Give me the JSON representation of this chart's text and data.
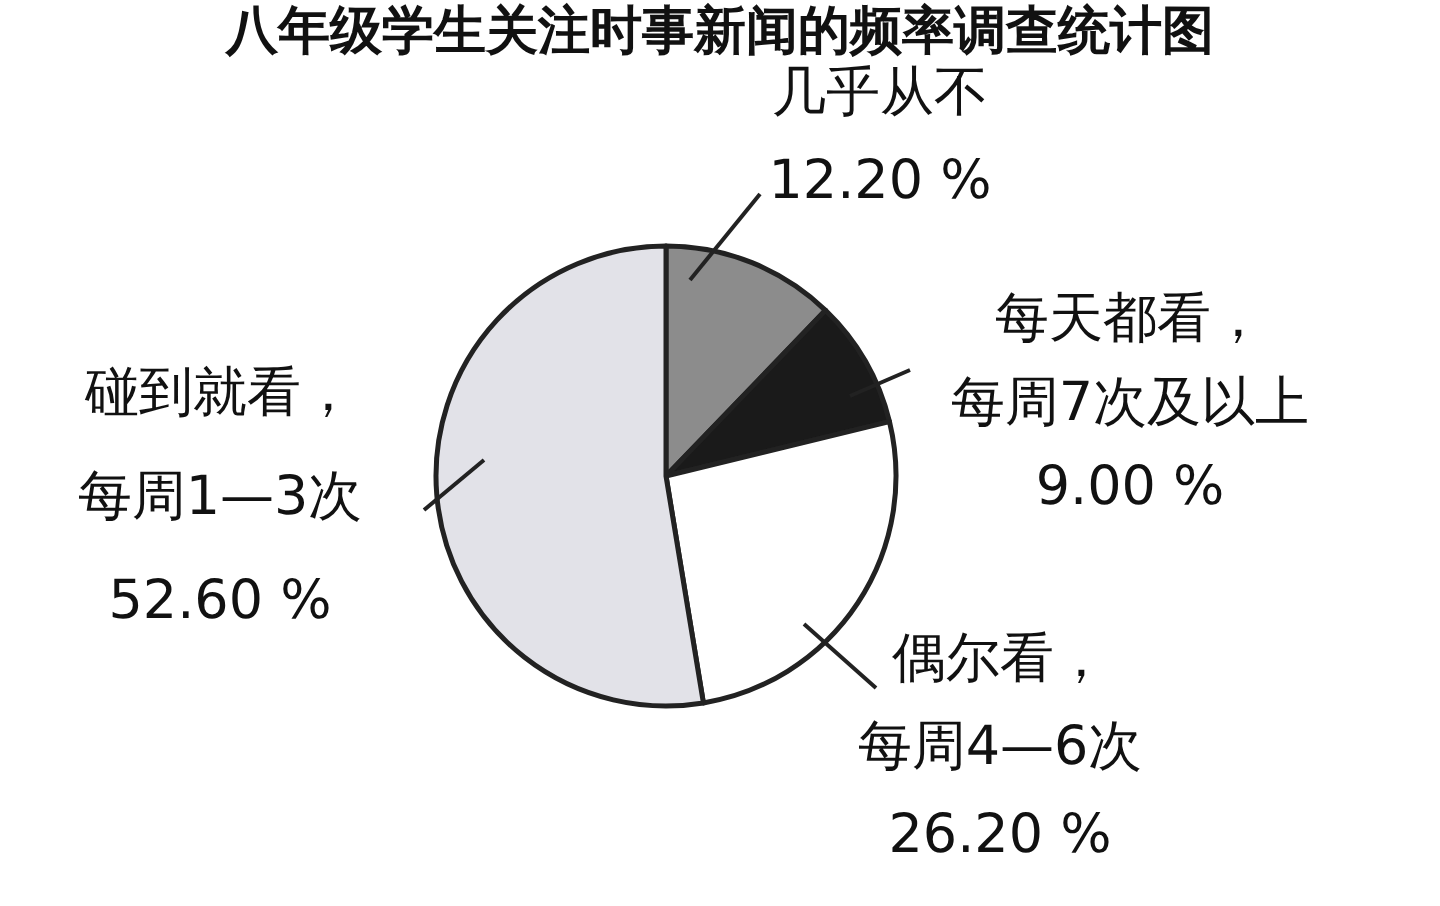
{
  "chart_data": {
    "type": "pie",
    "title": "八年级学生关注时事新闻的频率调查统计图",
    "categories": [
      "几乎从不",
      "每天都看，每周7次及以上",
      "偶尔看，每周4—6次",
      "碰到就看，每周1—3次"
    ],
    "values": [
      12.2,
      9.0,
      26.2,
      52.6
    ],
    "value_labels": [
      "12.20 %",
      "9.00 %",
      "26.20 %",
      "52.60 %"
    ],
    "colors": [
      "#8c8c8c",
      "#1a1a1a",
      "#ffffff",
      "#e2e2e8"
    ]
  }
}
